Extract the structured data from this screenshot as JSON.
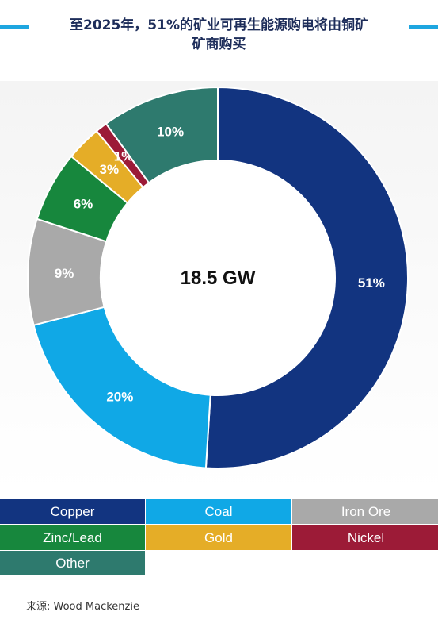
{
  "header": {
    "title_line1": "至2025年，51%的矿业可再生能源购电将由铜矿",
    "title_line2": "矿商购买"
  },
  "chart_data": {
    "type": "pie",
    "subtype": "donut",
    "center_label": "18.5 GW",
    "slices": [
      {
        "name": "Copper",
        "value": 51,
        "label": "51%",
        "color": "#123480"
      },
      {
        "name": "Coal",
        "value": 20,
        "label": "20%",
        "color": "#10a8e6"
      },
      {
        "name": "Iron Ore",
        "value": 9,
        "label": "9%",
        "color": "#a9a9a9"
      },
      {
        "name": "Zinc/Lead",
        "value": 6,
        "label": "6%",
        "color": "#17873d"
      },
      {
        "name": "Gold",
        "value": 3,
        "label": "3%",
        "color": "#e5ad27"
      },
      {
        "name": "Nickel",
        "value": 1,
        "label": "1%",
        "color": "#9c1b37"
      },
      {
        "name": "Other",
        "value": 10,
        "label": "10%",
        "color": "#2e7a6e"
      }
    ],
    "legend_position": "bottom"
  },
  "footer": {
    "source": "来源: Wood Mackenzie"
  }
}
